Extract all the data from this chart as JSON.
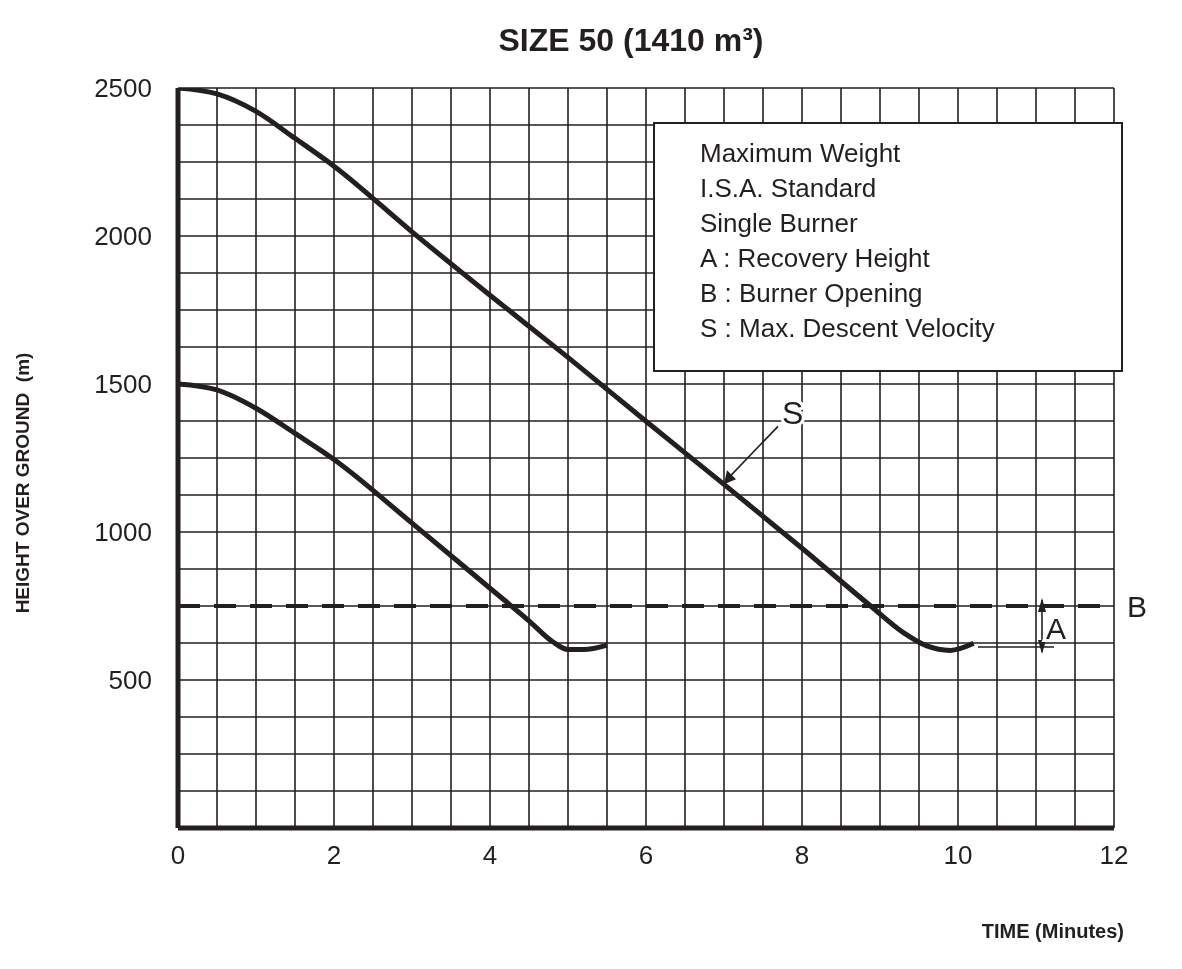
{
  "chart_data": {
    "type": "line",
    "title": "SIZE 50 (1410 m³)",
    "xlabel": "TIME (Minutes)",
    "ylabel": "HEIGHT OVER GROUND  (m)",
    "series": [
      {
        "color": "#231f20",
        "x": [
          0,
          0.5,
          1,
          1.5,
          2,
          3,
          4,
          5,
          6,
          7,
          8,
          8.88,
          9.3,
          9.6,
          9.9,
          10.2
        ],
        "values": [
          2500,
          2480,
          2421,
          2330,
          2236,
          2014,
          1800,
          1590,
          1374,
          1161,
          945,
          750,
          660,
          615,
          600,
          624
        ]
      },
      {
        "color": "#231f20",
        "x": [
          0,
          0.5,
          1,
          1.5,
          2,
          3,
          4,
          4.5,
          4.8,
          5,
          5.2,
          5.5
        ],
        "values": [
          1500,
          1480,
          1418,
          1333,
          1245,
          1030,
          810,
          700,
          630,
          603,
          603,
          618
        ]
      }
    ],
    "xlim": [
      0,
      12
    ],
    "xticks": [
      0,
      {
        "value": 0.5,
        "label": null
      },
      {
        "value": 1,
        "label": null
      },
      {
        "value": 1.5,
        "label": null
      },
      2,
      {
        "value": 2.5,
        "label": null
      },
      {
        "value": 3,
        "label": null
      },
      {
        "value": 3.5,
        "label": null
      },
      4,
      {
        "value": 4.5,
        "label": null
      },
      {
        "value": 5,
        "label": null
      },
      {
        "value": 5.5,
        "label": null
      },
      6,
      {
        "value": 6.5,
        "label": null
      },
      {
        "value": 7,
        "label": null
      },
      {
        "value": 7.5,
        "label": null
      },
      8,
      {
        "value": 8.5,
        "label": null
      },
      {
        "value": 9,
        "label": null
      },
      {
        "value": 9.5,
        "label": null
      },
      10,
      {
        "value": 10.5,
        "label": null
      },
      {
        "value": 11,
        "label": null
      },
      {
        "value": 11.5,
        "label": null
      },
      12
    ],
    "ylim": [
      0,
      2500
    ],
    "yticks": [
      {
        "value": 0,
        "label": null
      },
      {
        "value": 125,
        "label": null
      },
      {
        "value": 250,
        "label": null
      },
      {
        "value": 375,
        "label": null
      },
      500,
      {
        "value": 625,
        "label": null
      },
      {
        "value": 750,
        "label": null
      },
      {
        "value": 875,
        "label": null
      },
      1000,
      {
        "value": 1125,
        "label": null
      },
      {
        "value": 1250,
        "label": null
      },
      {
        "value": 1375,
        "label": null
      },
      1500,
      {
        "value": 1625,
        "label": null
      },
      {
        "value": 1750,
        "label": null
      },
      {
        "value": 1875,
        "label": null
      },
      2000,
      {
        "value": 2125,
        "label": null
      },
      {
        "value": 2250,
        "label": null
      },
      {
        "value": 2375,
        "label": null
      },
      2500
    ],
    "grid": true,
    "line_style": "solid",
    "marker": "none",
    "ref_lines": [
      {
        "axis": "y",
        "value": 750,
        "label": "B",
        "line_style": "dashed",
        "color": "#231f20"
      }
    ],
    "annotations": [
      "Maximum Weight",
      "I.S.A. Standard",
      "Single Burner",
      "A : Recovery Height",
      "B : Burner Opening",
      "S : Max. Descent Velocity",
      {
        "text": "S",
        "x": 7.0,
        "y": 1161
      },
      "A"
    ]
  }
}
